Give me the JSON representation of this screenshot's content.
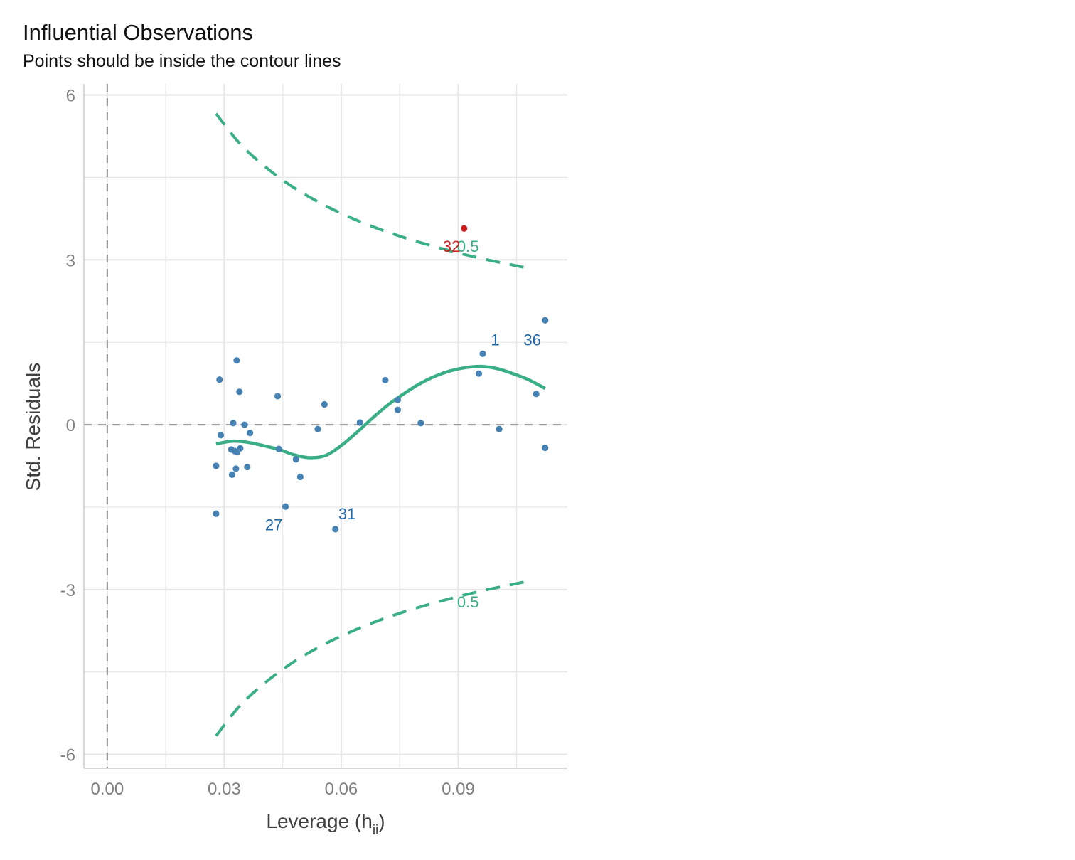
{
  "chart_data": {
    "type": "scatter",
    "title": "Influential Observations",
    "subtitle": "Points should be inside the contour lines",
    "xlabel": {
      "base": "Leverage (h",
      "subscript": "ii",
      "suffix": ")"
    },
    "ylabel": "Std. Residuals",
    "xlim": [
      -0.006,
      0.118
    ],
    "ylim": [
      -6.25,
      6.2
    ],
    "x_ticks": [
      {
        "value": 0.0,
        "label": "0.00"
      },
      {
        "value": 0.03,
        "label": "0.03"
      },
      {
        "value": 0.06,
        "label": "0.06"
      },
      {
        "value": 0.09,
        "label": "0.09"
      }
    ],
    "y_ticks": [
      {
        "value": 6,
        "label": "6"
      },
      {
        "value": 3,
        "label": "3"
      },
      {
        "value": 0,
        "label": "0"
      },
      {
        "value": -3,
        "label": "-3"
      },
      {
        "value": -6,
        "label": "-6"
      }
    ],
    "grid": true,
    "points": [
      {
        "x": 0.0279,
        "y": -0.75
      },
      {
        "x": 0.0279,
        "y": -1.62
      },
      {
        "x": 0.0288,
        "y": 0.82
      },
      {
        "x": 0.0291,
        "y": -0.19
      },
      {
        "x": 0.0318,
        "y": -0.45
      },
      {
        "x": 0.032,
        "y": -0.91
      },
      {
        "x": 0.0323,
        "y": 0.03
      },
      {
        "x": 0.0327,
        "y": -0.48
      },
      {
        "x": 0.033,
        "y": -0.8
      },
      {
        "x": 0.0332,
        "y": 1.17
      },
      {
        "x": 0.0333,
        "y": -0.5
      },
      {
        "x": 0.0339,
        "y": 0.6
      },
      {
        "x": 0.0341,
        "y": -0.43
      },
      {
        "x": 0.0352,
        "y": 0.0
      },
      {
        "x": 0.0359,
        "y": -0.77
      },
      {
        "x": 0.0366,
        "y": -0.15
      },
      {
        "x": 0.0437,
        "y": 0.52
      },
      {
        "x": 0.044,
        "y": -0.44
      },
      {
        "x": 0.0457,
        "y": -1.49
      },
      {
        "x": 0.0484,
        "y": -0.63
      },
      {
        "x": 0.0495,
        "y": -0.95
      },
      {
        "x": 0.054,
        "y": -0.08
      },
      {
        "x": 0.0557,
        "y": 0.37
      },
      {
        "x": 0.0585,
        "y": -1.9
      },
      {
        "x": 0.0648,
        "y": 0.04
      },
      {
        "x": 0.0713,
        "y": 0.81
      },
      {
        "x": 0.0745,
        "y": 0.45
      },
      {
        "x": 0.0745,
        "y": 0.27
      },
      {
        "x": 0.0804,
        "y": 0.03
      },
      {
        "x": 0.0953,
        "y": 0.93
      },
      {
        "x": 0.0963,
        "y": 1.29
      },
      {
        "x": 0.1005,
        "y": -0.08
      },
      {
        "x": 0.11,
        "y": 0.56
      },
      {
        "x": 0.1123,
        "y": 1.9
      },
      {
        "x": 0.1123,
        "y": -0.42
      },
      {
        "x": 0.0915,
        "y": 3.57,
        "influential": true
      }
    ],
    "point_labels": [
      {
        "text": "32",
        "x": 0.0883,
        "y": 3.25,
        "influential": true
      },
      {
        "text": "1",
        "x": 0.0995,
        "y": 1.55
      },
      {
        "text": "36",
        "x": 0.109,
        "y": 1.55
      },
      {
        "text": "31",
        "x": 0.0615,
        "y": -1.62
      },
      {
        "text": "27",
        "x": 0.0427,
        "y": -1.82
      }
    ],
    "contours": {
      "name": "0.5",
      "upper": {
        "x": [
          0.0279,
          0.035,
          0.045,
          0.055,
          0.065,
          0.075,
          0.085,
          0.095,
          0.105,
          0.109
        ],
        "y": [
          5.66,
          5.04,
          4.45,
          4.02,
          3.69,
          3.43,
          3.22,
          3.04,
          2.89,
          2.83
        ]
      },
      "lower": {
        "x": [
          0.0279,
          0.035,
          0.045,
          0.055,
          0.065,
          0.075,
          0.085,
          0.095,
          0.105,
          0.109
        ],
        "y": [
          -5.66,
          -5.04,
          -4.45,
          -4.02,
          -3.69,
          -3.43,
          -3.22,
          -3.04,
          -2.89,
          -2.83
        ]
      },
      "label_positions": [
        {
          "x": 0.0925,
          "y": 3.25
        },
        {
          "x": 0.0925,
          "y": -3.22
        }
      ]
    },
    "smooth": {
      "x": [
        0.0279,
        0.032,
        0.036,
        0.04,
        0.044,
        0.048,
        0.052,
        0.056,
        0.06,
        0.064,
        0.068,
        0.072,
        0.076,
        0.08,
        0.084,
        0.088,
        0.092,
        0.096,
        0.1,
        0.104,
        0.108,
        0.1123
      ],
      "y": [
        -0.35,
        -0.3,
        -0.32,
        -0.38,
        -0.45,
        -0.55,
        -0.6,
        -0.56,
        -0.38,
        -0.14,
        0.12,
        0.36,
        0.56,
        0.74,
        0.88,
        0.98,
        1.04,
        1.06,
        1.02,
        0.93,
        0.82,
        0.66
      ]
    },
    "colors": {
      "points": "#4682b4",
      "influential": "#cd201f",
      "labels": "#2269a9",
      "contour": "#3aaf85",
      "smooth": "#3aaf85",
      "grid": "#e6e6e6",
      "refline": "#9e9e9e",
      "axis_text": "#808080"
    }
  }
}
